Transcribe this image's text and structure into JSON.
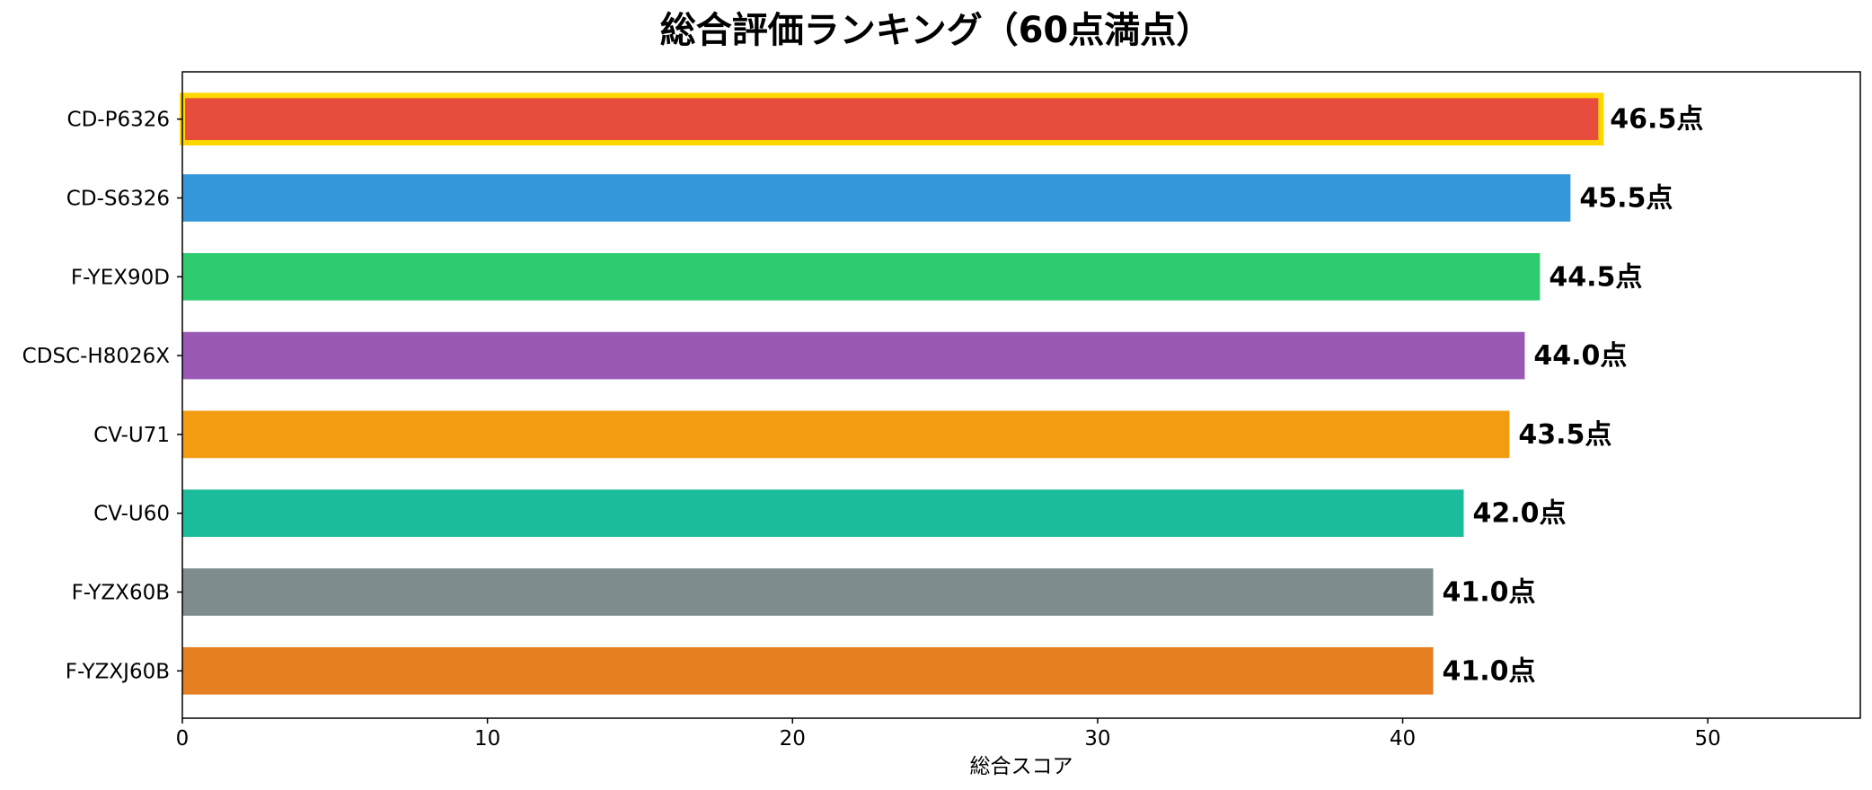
{
  "chart_data": {
    "type": "bar",
    "orientation": "horizontal",
    "title": "総合評価ランキング（60点満点）",
    "xlabel": "総合スコア",
    "ylabel": "",
    "xlim": [
      0,
      55
    ],
    "xticks": [
      0,
      10,
      20,
      30,
      40,
      50
    ],
    "grid": false,
    "value_suffix": "点",
    "highlight": {
      "category": "CD-P6326",
      "outline_color": "#FFD700"
    },
    "categories": [
      "CD-P6326",
      "CD-S6326",
      "F-YEX90D",
      "CDSC-H8026X",
      "CV-U71",
      "CV-U60",
      "F-YZX60B",
      "F-YZXJ60B"
    ],
    "values": [
      46.5,
      45.5,
      44.5,
      44.0,
      43.5,
      42.0,
      41.0,
      41.0
    ],
    "value_labels": [
      "46.5点",
      "45.5点",
      "44.5点",
      "44.0点",
      "43.5点",
      "42.0点",
      "41.0点",
      "41.0点"
    ],
    "colors": [
      "#E74C3C",
      "#3498DB",
      "#2ECC71",
      "#9B59B6",
      "#F39C12",
      "#1ABC9C",
      "#7F8C8D",
      "#E67E22"
    ]
  }
}
